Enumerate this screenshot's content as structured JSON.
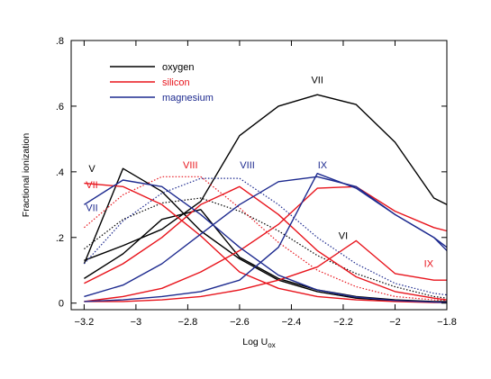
{
  "chart_data": {
    "type": "line",
    "xlabel": "Log U",
    "xlabel_subscript": "ox",
    "ylabel": "Fractional ionization",
    "xlim": [
      -3.25,
      -1.8
    ],
    "ylim": [
      -0.02,
      0.8
    ],
    "xticks": [
      -3.2,
      -3.0,
      -2.8,
      -2.6,
      -2.4,
      -2.2,
      -2.0,
      -1.8
    ],
    "xtick_labels": [
      "−3.2",
      "−3",
      "−2.8",
      "−2.6",
      "−2.4",
      "−2.2",
      "−2",
      "−1.8"
    ],
    "yticks": [
      0,
      0.2,
      0.4,
      0.6,
      0.8
    ],
    "ytick_labels": [
      "0",
      ".2",
      ".4",
      ".6",
      ".8"
    ],
    "grid": false,
    "legend_position": "top-left",
    "legend": [
      {
        "label": "oxygen",
        "color": "#000000"
      },
      {
        "label": "silicon",
        "color": "#e8141c"
      },
      {
        "label": "magnesium",
        "color": "#1d2a8f"
      }
    ],
    "x": [
      -3.2,
      -3.05,
      -2.9,
      -2.75,
      -2.6,
      -2.45,
      -2.3,
      -2.15,
      -2.0,
      -1.85,
      -1.8
    ],
    "series": [
      {
        "element": "oxygen",
        "ion": "V",
        "color": "#000000",
        "style": "solid",
        "values": [
          0.075,
          0.15,
          0.255,
          0.285,
          0.14,
          0.075,
          0.04,
          0.02,
          0.01,
          0.005,
          0.005
        ]
      },
      {
        "element": "oxygen",
        "ion": "V",
        "color": "#000000",
        "style": "solid",
        "values": [
          0.12,
          0.41,
          0.34,
          0.22,
          0.135,
          0.07,
          0.035,
          0.015,
          0.007,
          0.003,
          0.002
        ]
      },
      {
        "element": "oxygen",
        "ion": "VI",
        "color": "#000000",
        "style": "dotted",
        "values": [
          0.165,
          0.255,
          0.305,
          0.32,
          0.28,
          0.22,
          0.145,
          0.09,
          0.05,
          0.02,
          0.015
        ]
      },
      {
        "element": "oxygen",
        "ion": "VII",
        "color": "#000000",
        "style": "solid",
        "values": [
          0.13,
          0.175,
          0.225,
          0.31,
          0.51,
          0.6,
          0.635,
          0.605,
          0.49,
          0.32,
          0.3
        ]
      },
      {
        "element": "silicon",
        "ion": "VII",
        "color": "#e8141c",
        "style": "solid",
        "values": [
          0.365,
          0.355,
          0.3,
          0.205,
          0.095,
          0.045,
          0.02,
          0.01,
          0.005,
          0.002,
          0.002
        ]
      },
      {
        "element": "silicon",
        "ion": "VII",
        "color": "#e8141c",
        "style": "solid",
        "values": [
          0.06,
          0.12,
          0.2,
          0.3,
          0.355,
          0.27,
          0.16,
          0.08,
          0.035,
          0.015,
          0.01
        ]
      },
      {
        "element": "silicon",
        "ion": "VIII",
        "color": "#e8141c",
        "style": "dotted",
        "values": [
          0.23,
          0.33,
          0.385,
          0.385,
          0.29,
          0.185,
          0.1,
          0.05,
          0.02,
          0.01,
          0.008
        ]
      },
      {
        "element": "silicon",
        "ion": "VIII",
        "color": "#e8141c",
        "style": "solid",
        "values": [
          0.005,
          0.02,
          0.045,
          0.095,
          0.16,
          0.24,
          0.35,
          0.355,
          0.28,
          0.23,
          0.22
        ]
      },
      {
        "element": "silicon",
        "ion": "IX",
        "color": "#e8141c",
        "style": "solid",
        "values": [
          0.005,
          0.005,
          0.01,
          0.02,
          0.04,
          0.07,
          0.11,
          0.19,
          0.09,
          0.07,
          0.07
        ]
      },
      {
        "element": "magnesium",
        "ion": "VII",
        "color": "#1d2a8f",
        "style": "solid",
        "values": [
          0.3,
          0.375,
          0.355,
          0.27,
          0.17,
          0.085,
          0.04,
          0.018,
          0.008,
          0.003,
          0.002
        ]
      },
      {
        "element": "magnesium",
        "ion": "VIII",
        "color": "#1d2a8f",
        "style": "dotted",
        "values": [
          0.12,
          0.25,
          0.335,
          0.38,
          0.38,
          0.3,
          0.2,
          0.12,
          0.06,
          0.03,
          0.025
        ]
      },
      {
        "element": "magnesium",
        "ion": "VIII",
        "color": "#1d2a8f",
        "style": "solid",
        "values": [
          0.02,
          0.055,
          0.12,
          0.21,
          0.3,
          0.37,
          0.385,
          0.355,
          0.27,
          0.2,
          0.16
        ]
      },
      {
        "element": "magnesium",
        "ion": "IX",
        "color": "#1d2a8f",
        "style": "solid",
        "values": [
          0.005,
          0.01,
          0.02,
          0.035,
          0.07,
          0.17,
          0.395,
          0.35,
          0.27,
          0.2,
          0.17
        ]
      }
    ],
    "annotations": [
      {
        "text": "VII",
        "x": -2.3,
        "y": 0.67,
        "color": "#000000"
      },
      {
        "text": "V",
        "x": -3.17,
        "y": 0.4,
        "color": "#000000"
      },
      {
        "text": "VII",
        "x": -3.17,
        "y": 0.35,
        "color": "#e8141c"
      },
      {
        "text": "VII",
        "x": -3.17,
        "y": 0.28,
        "color": "#1d2a8f"
      },
      {
        "text": "VIII",
        "x": -2.79,
        "y": 0.41,
        "color": "#e8141c"
      },
      {
        "text": "VIII",
        "x": -2.57,
        "y": 0.41,
        "color": "#1d2a8f"
      },
      {
        "text": "IX",
        "x": -2.28,
        "y": 0.41,
        "color": "#1d2a8f"
      },
      {
        "text": "VI",
        "x": -2.2,
        "y": 0.195,
        "color": "#000000"
      },
      {
        "text": "IX",
        "x": -1.87,
        "y": 0.11,
        "color": "#e8141c"
      }
    ]
  }
}
